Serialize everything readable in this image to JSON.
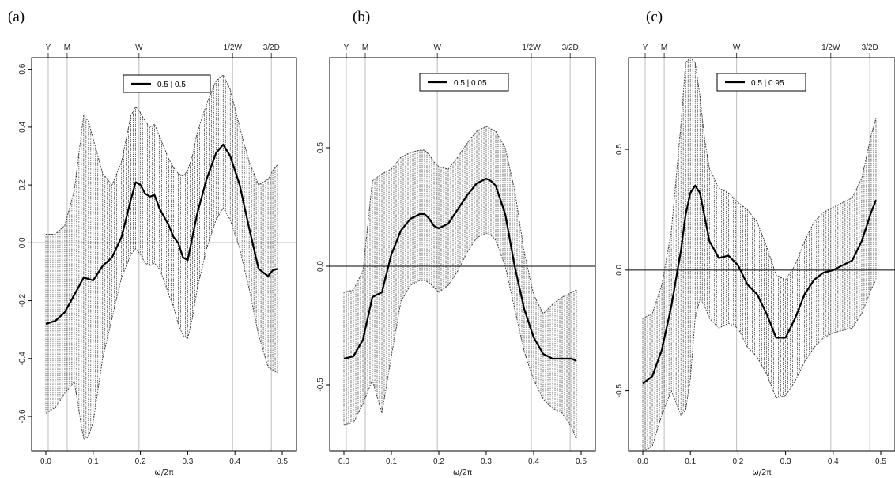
{
  "chart_data": [
    {
      "panel_label": "(a)",
      "type": "line",
      "xlabel": "ω/2π",
      "ylabel": "",
      "xlim": [
        -0.01,
        0.51
      ],
      "ylim": [
        -0.72,
        0.64
      ],
      "xticks": [
        0.0,
        0.1,
        0.2,
        0.3,
        0.4,
        0.5
      ],
      "xtick_labels": [
        "0.0",
        "0.1",
        "0.2",
        "0.3",
        "0.4",
        "0.5"
      ],
      "yticks": [
        -0.6,
        -0.4,
        -0.2,
        0.0,
        0.2,
        0.4,
        0.6
      ],
      "ytick_labels": [
        "-0.6",
        "-0.4",
        "-0.2",
        "0.0",
        "0.2",
        "0.4",
        "0.6"
      ],
      "top_marks": [
        {
          "label": "Y",
          "x": 0.005
        },
        {
          "label": "M",
          "x": 0.045
        },
        {
          "label": "W",
          "x": 0.197
        },
        {
          "label": "1/2W",
          "x": 0.395
        },
        {
          "label": "3/2D",
          "x": 0.477
        }
      ],
      "legend": "0.5 | 0.5",
      "x": [
        0,
        0.02,
        0.04,
        0.06,
        0.08,
        0.09,
        0.1,
        0.12,
        0.14,
        0.16,
        0.18,
        0.19,
        0.2,
        0.21,
        0.22,
        0.23,
        0.24,
        0.25,
        0.26,
        0.27,
        0.28,
        0.29,
        0.3,
        0.31,
        0.32,
        0.34,
        0.36,
        0.375,
        0.39,
        0.41,
        0.43,
        0.45,
        0.47,
        0.48,
        0.49
      ],
      "series": [
        {
          "values": [
            -0.28,
            -0.27,
            -0.24,
            -0.18,
            -0.12,
            -0.125,
            -0.13,
            -0.08,
            -0.05,
            0.02,
            0.15,
            0.21,
            0.2,
            0.17,
            0.16,
            0.165,
            0.12,
            0.09,
            0.06,
            0.02,
            0.0,
            -0.05,
            -0.06,
            0.02,
            0.1,
            0.22,
            0.31,
            0.34,
            0.3,
            0.2,
            0.05,
            -0.09,
            -0.115,
            -0.095,
            -0.09
          ]
        },
        {
          "values": [
            0.03,
            0.03,
            0.06,
            0.18,
            0.44,
            0.42,
            0.36,
            0.24,
            0.2,
            0.28,
            0.44,
            0.47,
            0.45,
            0.42,
            0.4,
            0.41,
            0.37,
            0.33,
            0.29,
            0.26,
            0.24,
            0.23,
            0.25,
            0.3,
            0.38,
            0.48,
            0.56,
            0.58,
            0.53,
            0.4,
            0.28,
            0.2,
            0.22,
            0.25,
            0.27
          ]
        },
        {
          "values": [
            -0.59,
            -0.57,
            -0.52,
            -0.48,
            -0.68,
            -0.67,
            -0.62,
            -0.4,
            -0.26,
            -0.12,
            -0.04,
            -0.02,
            -0.04,
            -0.07,
            -0.08,
            -0.07,
            -0.09,
            -0.13,
            -0.18,
            -0.22,
            -0.28,
            -0.32,
            -0.33,
            -0.26,
            -0.16,
            -0.02,
            0.08,
            0.12,
            0.08,
            -0.02,
            -0.16,
            -0.32,
            -0.43,
            -0.44,
            -0.45
          ]
        }
      ]
    },
    {
      "panel_label": "(b)",
      "type": "line",
      "xlabel": "ω/2π",
      "ylabel": "",
      "xlim": [
        -0.01,
        0.51
      ],
      "ylim": [
        -0.78,
        0.88
      ],
      "xticks": [
        0.0,
        0.1,
        0.2,
        0.3,
        0.4,
        0.5
      ],
      "xtick_labels": [
        "0.0",
        "0.1",
        "0.2",
        "0.3",
        "0.4",
        "0.5"
      ],
      "yticks": [
        -0.5,
        0.0,
        0.5
      ],
      "ytick_labels": [
        "-0.5",
        "0.0",
        "0.5"
      ],
      "top_marks": [
        {
          "label": "Y",
          "x": 0.005
        },
        {
          "label": "M",
          "x": 0.045
        },
        {
          "label": "W",
          "x": 0.197
        },
        {
          "label": "1/2W",
          "x": 0.395
        },
        {
          "label": "3/2D",
          "x": 0.477
        }
      ],
      "legend": "0.5 | 0.05",
      "x": [
        0,
        0.02,
        0.04,
        0.06,
        0.08,
        0.1,
        0.12,
        0.14,
        0.16,
        0.17,
        0.18,
        0.19,
        0.2,
        0.22,
        0.24,
        0.26,
        0.28,
        0.3,
        0.31,
        0.32,
        0.34,
        0.36,
        0.38,
        0.4,
        0.42,
        0.44,
        0.46,
        0.48,
        0.49
      ],
      "series": [
        {
          "values": [
            -0.39,
            -0.38,
            -0.31,
            -0.13,
            -0.11,
            0.05,
            0.15,
            0.2,
            0.22,
            0.22,
            0.2,
            0.17,
            0.16,
            0.18,
            0.24,
            0.3,
            0.35,
            0.37,
            0.36,
            0.34,
            0.22,
            0.0,
            -0.18,
            -0.3,
            -0.37,
            -0.39,
            -0.39,
            -0.39,
            -0.4
          ]
        },
        {
          "values": [
            -0.11,
            -0.1,
            -0.02,
            0.36,
            0.39,
            0.41,
            0.46,
            0.48,
            0.49,
            0.49,
            0.47,
            0.44,
            0.42,
            0.41,
            0.46,
            0.52,
            0.57,
            0.59,
            0.58,
            0.57,
            0.5,
            0.32,
            0.06,
            -0.12,
            -0.2,
            -0.16,
            -0.13,
            -0.11,
            -0.1
          ]
        },
        {
          "values": [
            -0.67,
            -0.66,
            -0.58,
            -0.48,
            -0.62,
            -0.38,
            -0.15,
            -0.08,
            -0.06,
            -0.06,
            -0.07,
            -0.09,
            -0.11,
            -0.08,
            -0.02,
            0.06,
            0.12,
            0.14,
            0.13,
            0.11,
            0.0,
            -0.18,
            -0.36,
            -0.48,
            -0.56,
            -0.6,
            -0.62,
            -0.68,
            -0.73
          ]
        }
      ]
    },
    {
      "panel_label": "(c)",
      "type": "line",
      "xlabel": "ω/2π",
      "ylabel": "",
      "xlim": [
        -0.01,
        0.51
      ],
      "ylim": [
        -0.75,
        0.88
      ],
      "xticks": [
        0.0,
        0.1,
        0.2,
        0.3,
        0.4,
        0.5
      ],
      "xtick_labels": [
        "0.0",
        "0.1",
        "0.2",
        "0.3",
        "0.4",
        "0.5"
      ],
      "yticks": [
        -0.5,
        0.0,
        0.5
      ],
      "ytick_labels": [
        "-0.5",
        "0.0",
        "0.5"
      ],
      "top_marks": [
        {
          "label": "Y",
          "x": 0.005
        },
        {
          "label": "M",
          "x": 0.045
        },
        {
          "label": "W",
          "x": 0.197
        },
        {
          "label": "1/2W",
          "x": 0.395
        },
        {
          "label": "3/2D",
          "x": 0.477
        }
      ],
      "legend": "0.5 | 0.95",
      "x": [
        0,
        0.02,
        0.04,
        0.06,
        0.08,
        0.09,
        0.1,
        0.11,
        0.12,
        0.13,
        0.14,
        0.16,
        0.18,
        0.2,
        0.22,
        0.24,
        0.26,
        0.28,
        0.3,
        0.32,
        0.34,
        0.36,
        0.38,
        0.4,
        0.42,
        0.44,
        0.46,
        0.48,
        0.49
      ],
      "series": [
        {
          "values": [
            -0.47,
            -0.44,
            -0.33,
            -0.15,
            0.08,
            0.23,
            0.32,
            0.35,
            0.32,
            0.22,
            0.12,
            0.05,
            0.06,
            0.02,
            -0.06,
            -0.1,
            -0.18,
            -0.28,
            -0.28,
            -0.2,
            -0.1,
            -0.04,
            -0.01,
            0.0,
            0.02,
            0.04,
            0.12,
            0.24,
            0.29
          ]
        },
        {
          "values": [
            -0.2,
            -0.18,
            -0.06,
            0.16,
            0.6,
            0.86,
            0.88,
            0.86,
            0.72,
            0.54,
            0.42,
            0.34,
            0.32,
            0.28,
            0.25,
            0.2,
            0.1,
            -0.02,
            -0.04,
            0.02,
            0.12,
            0.2,
            0.24,
            0.26,
            0.28,
            0.3,
            0.38,
            0.56,
            0.63
          ]
        },
        {
          "values": [
            -0.75,
            -0.73,
            -0.6,
            -0.5,
            -0.6,
            -0.58,
            -0.45,
            -0.2,
            -0.12,
            -0.15,
            -0.2,
            -0.24,
            -0.22,
            -0.24,
            -0.32,
            -0.36,
            -0.43,
            -0.53,
            -0.52,
            -0.46,
            -0.38,
            -0.32,
            -0.28,
            -0.26,
            -0.25,
            -0.24,
            -0.18,
            -0.08,
            -0.04
          ]
        }
      ]
    }
  ]
}
